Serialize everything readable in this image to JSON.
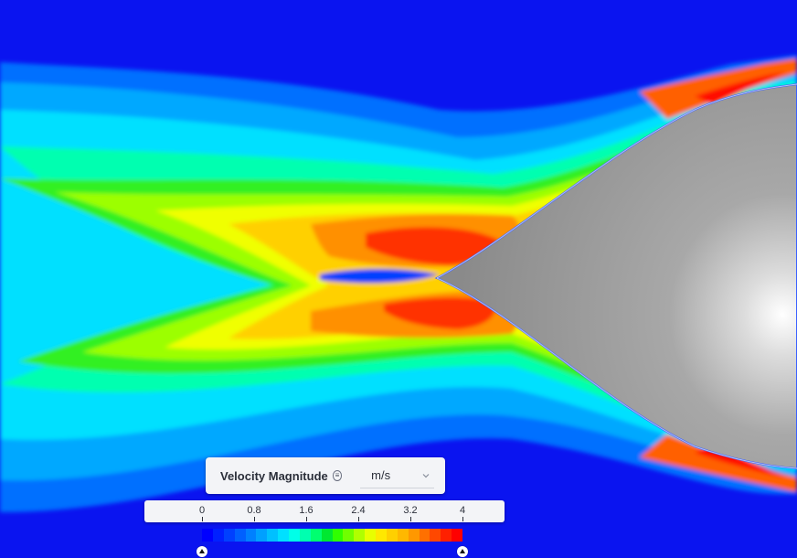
{
  "legend": {
    "title": "Velocity Magnitude",
    "info_icon": "info-icon",
    "unit": "m/s",
    "dropdown_icon": "chevron-down-icon",
    "ticks": [
      "0",
      "0.8",
      "1.6",
      "2.4",
      "3.2",
      "4"
    ],
    "tick_values": [
      0,
      0.8,
      1.6,
      2.4,
      3.2,
      4
    ],
    "range": [
      0,
      4
    ],
    "min_handle_value": 0,
    "max_handle_value": 4,
    "colormap": [
      "#0000ff",
      "#0020ff",
      "#0040ff",
      "#0060ff",
      "#0080ff",
      "#00a0ff",
      "#00c0ff",
      "#00e0ff",
      "#00ffe8",
      "#00ffb0",
      "#00ff70",
      "#00e830",
      "#30ff00",
      "#70ff00",
      "#b0ff00",
      "#e8ff00",
      "#ffe800",
      "#ffd000",
      "#ffb800",
      "#ff9800",
      "#ff7000",
      "#ff4800",
      "#ff2000",
      "#ff0000"
    ]
  },
  "scene": {
    "background_color": "#0a14f0",
    "body_color": "#8c8c8c"
  }
}
